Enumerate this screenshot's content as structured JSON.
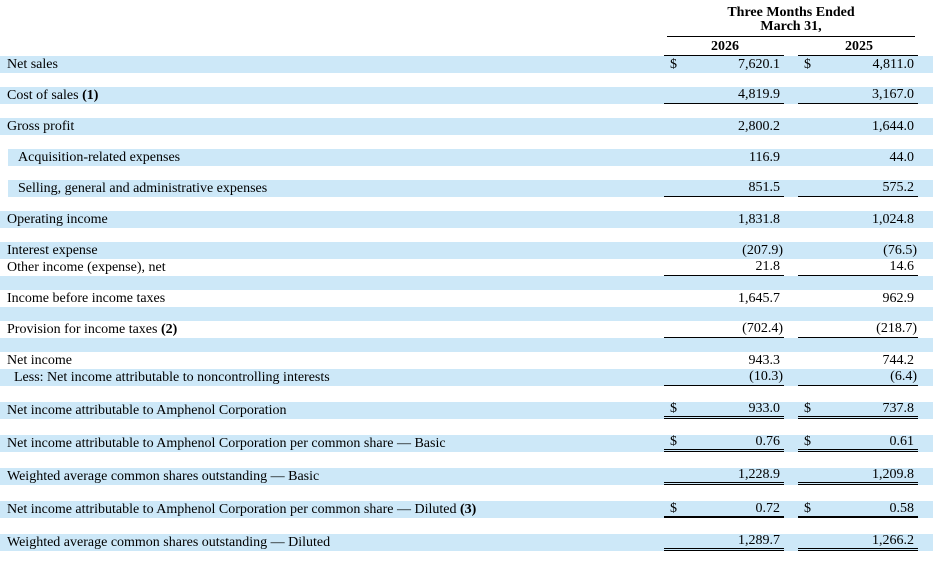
{
  "table": {
    "header": {
      "period_line1": "Three Months Ended",
      "period_line2": "March 31,",
      "col_years": [
        "2026",
        "2025"
      ]
    },
    "colors": {
      "band_blue": "#cde8f8",
      "text": "#000000",
      "rule": "#000000"
    },
    "rows": [
      {
        "label": "Net sales",
        "note": "",
        "indent": 0,
        "band": "blue",
        "band_indent": false,
        "dollar": true,
        "values": [
          "7,620.1",
          "4,811.0"
        ],
        "underline": "none",
        "spacer_after": "white",
        "spacer_h": 14
      },
      {
        "label": "Cost of sales",
        "note": "(1)",
        "indent": 0,
        "band": "blue",
        "band_indent": false,
        "dollar": false,
        "values": [
          "4,819.9",
          "3,167.0"
        ],
        "underline": "single",
        "spacer_after": "white",
        "spacer_h": 14
      },
      {
        "label": "Gross profit",
        "note": "",
        "indent": 0,
        "band": "blue",
        "band_indent": false,
        "dollar": false,
        "values": [
          "2,800.2",
          "1,644.0"
        ],
        "underline": "none",
        "spacer_after": "white",
        "spacer_h": 14
      },
      {
        "label": "Acquisition-related expenses",
        "note": "",
        "indent": 1,
        "band": "blue",
        "band_indent": true,
        "dollar": false,
        "values": [
          "116.9",
          "44.0"
        ],
        "underline": "none",
        "spacer_after": "white",
        "spacer_h": 14
      },
      {
        "label": "Selling, general and administrative expenses",
        "note": "",
        "indent": 1,
        "band": "blue",
        "band_indent": true,
        "dollar": false,
        "values": [
          "851.5",
          "575.2"
        ],
        "underline": "single",
        "spacer_after": "white",
        "spacer_h": 14
      },
      {
        "label": "Operating income",
        "note": "",
        "indent": 0,
        "band": "blue",
        "band_indent": false,
        "dollar": false,
        "values": [
          "1,831.8",
          "1,024.8"
        ],
        "underline": "none",
        "spacer_after": "white",
        "spacer_h": 14
      },
      {
        "label": "Interest expense",
        "note": "",
        "indent": 0,
        "band": "blue",
        "band_indent": false,
        "dollar": false,
        "values": [
          "(207.9)",
          "(76.5)"
        ],
        "underline": "none",
        "spacer_after": "none",
        "spacer_h": 0
      },
      {
        "label": "Other income (expense), net",
        "note": "",
        "indent": 0,
        "band": "white",
        "band_indent": false,
        "dollar": false,
        "values": [
          "21.8",
          "14.6"
        ],
        "underline": "single",
        "spacer_after": "blue",
        "spacer_h": 14
      },
      {
        "label": "Income before income taxes",
        "note": "",
        "indent": 0,
        "band": "white",
        "band_indent": false,
        "dollar": false,
        "values": [
          "1,645.7",
          "962.9"
        ],
        "underline": "none",
        "spacer_after": "blue",
        "spacer_h": 14
      },
      {
        "label": "Provision for income taxes",
        "note": "(2)",
        "indent": 0,
        "band": "white",
        "band_indent": false,
        "dollar": false,
        "values": [
          "(702.4)",
          "(218.7)"
        ],
        "underline": "single",
        "spacer_after": "blue",
        "spacer_h": 14
      },
      {
        "label": "Net income",
        "note": "",
        "indent": 0,
        "band": "white",
        "band_indent": false,
        "dollar": false,
        "values": [
          "943.3",
          "744.2"
        ],
        "underline": "none",
        "spacer_after": "none",
        "spacer_h": 0
      },
      {
        "label": "Less: Net income attributable to noncontrolling interests",
        "note": "",
        "indent": 2,
        "band": "blue",
        "band_indent": false,
        "dollar": false,
        "values": [
          "(10.3)",
          "(6.4)"
        ],
        "underline": "single",
        "spacer_after": "white",
        "spacer_h": 16
      },
      {
        "label": "Net income attributable to Amphenol Corporation",
        "note": "",
        "indent": 0,
        "band": "blue",
        "band_indent": false,
        "dollar": true,
        "values": [
          "933.0",
          "737.8"
        ],
        "underline": "double",
        "spacer_after": "white",
        "spacer_h": 16
      },
      {
        "label": "Net income attributable to Amphenol Corporation per common share — Basic",
        "note": "",
        "indent": 0,
        "band": "blue",
        "band_indent": false,
        "dollar": true,
        "values": [
          "0.76",
          "0.61"
        ],
        "underline": "double",
        "spacer_after": "white",
        "spacer_h": 16
      },
      {
        "label": "Weighted average common shares outstanding — Basic",
        "note": "",
        "indent": 0,
        "band": "blue",
        "band_indent": false,
        "dollar": false,
        "values": [
          "1,228.9",
          "1,209.8"
        ],
        "underline": "double",
        "spacer_after": "white",
        "spacer_h": 16
      },
      {
        "label": "Net income attributable to Amphenol Corporation per common share — Diluted",
        "note": "(3)",
        "indent": 0,
        "band": "blue",
        "band_indent": false,
        "dollar": true,
        "values": [
          "0.72",
          "0.58"
        ],
        "underline": "thick",
        "spacer_after": "white",
        "spacer_h": 16
      },
      {
        "label": "Weighted average common shares outstanding — Diluted",
        "note": "",
        "indent": 0,
        "band": "blue",
        "band_indent": false,
        "dollar": false,
        "values": [
          "1,289.7",
          "1,266.2"
        ],
        "underline": "double",
        "spacer_after": "none",
        "spacer_h": 0
      }
    ]
  }
}
